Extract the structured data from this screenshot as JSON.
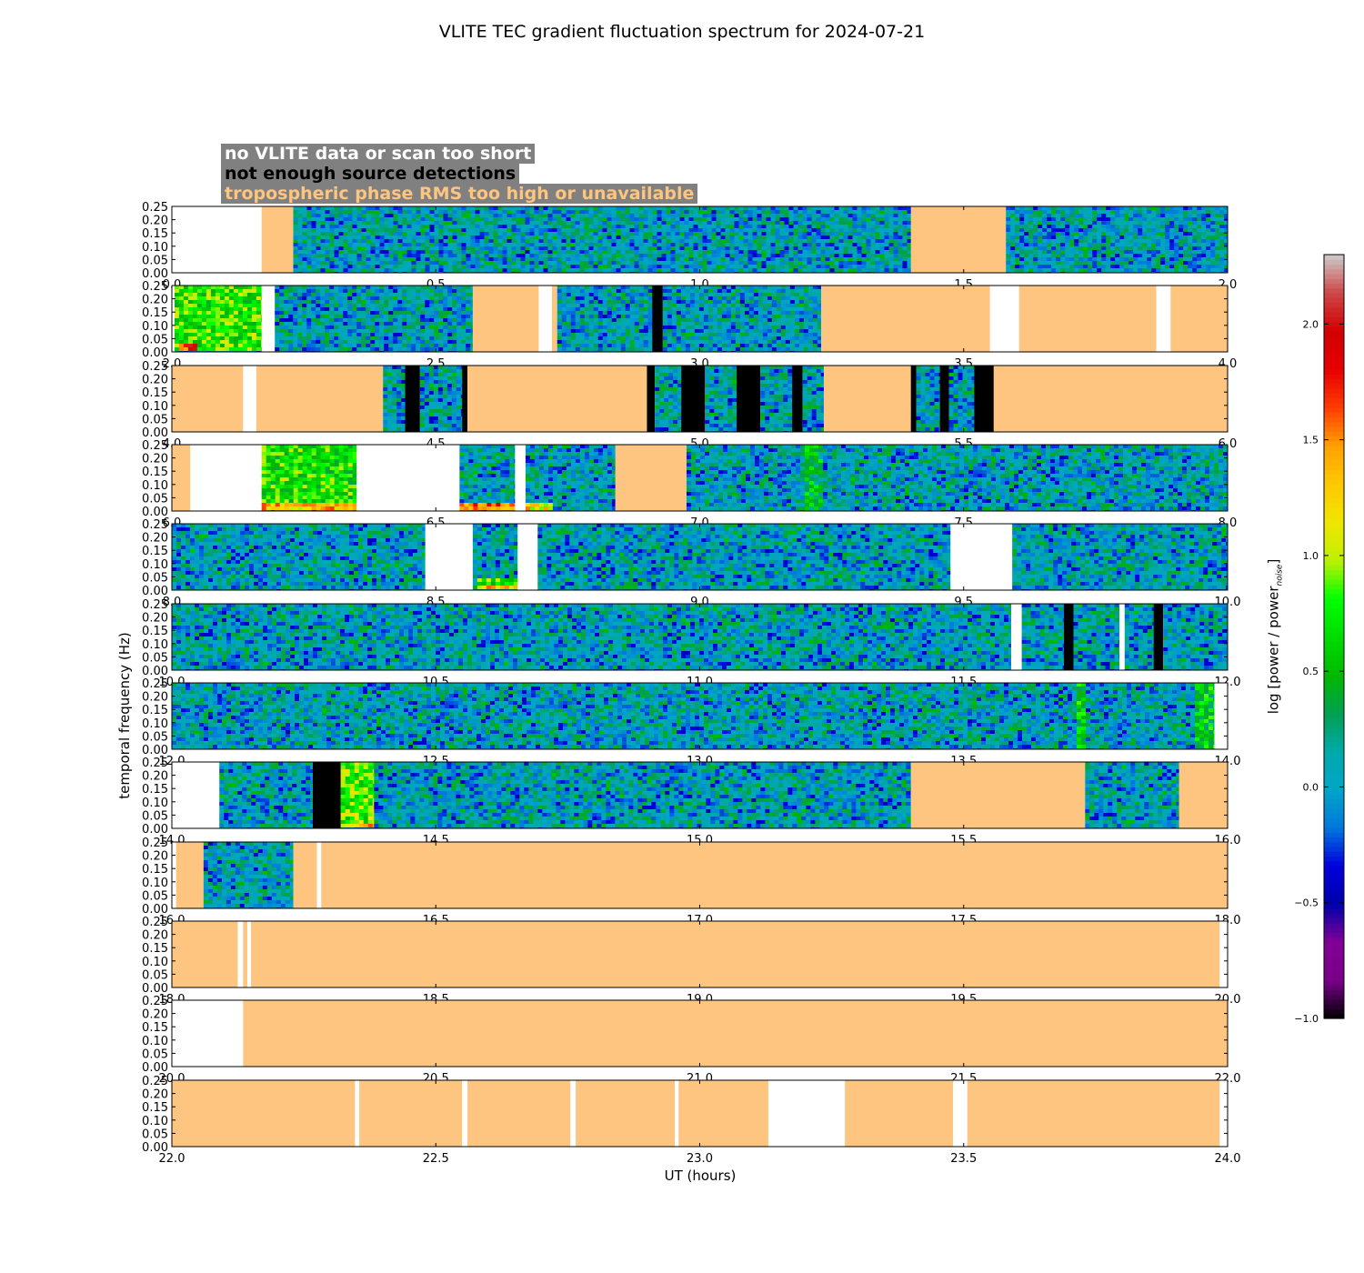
{
  "title": "VLITE TEC gradient fluctuation spectrum for 2024-07-21",
  "legend": [
    {
      "label": "no VLITE data or scan too short",
      "color": "#ffffff"
    },
    {
      "label": "not enough source detections",
      "color": "#000000"
    },
    {
      "label": "tropospheric phase RMS too high or unavailable",
      "color": "#fdc57f"
    }
  ],
  "colors": {
    "no_data": "#ffffff",
    "no_detections": "#000000",
    "tropo": "#fdc57f",
    "legend_bg": "#808080"
  },
  "chart_data": {
    "type": "heatmap",
    "title": "VLITE TEC gradient fluctuation spectrum for 2024-07-21",
    "xlabel": "UT (hours)",
    "ylabel": "temporal frequency (Hz)",
    "colorbar_label": "log [power / power_noise]",
    "colorbar_range": [
      -1.0,
      2.3
    ],
    "colorbar_ticks": [
      "-1.0",
      "-0.5",
      "0.0",
      "0.5",
      "1.0",
      "1.5",
      "2.0"
    ],
    "colormap": "nipy_spectral",
    "ylim": [
      0,
      0.25
    ],
    "y_ticks": [
      "0.00",
      "0.05",
      "0.10",
      "0.15",
      "0.20",
      "0.25"
    ],
    "panels": [
      {
        "xlim": [
          0,
          2
        ],
        "ticks": [
          "0.0",
          "0.5",
          "1.0",
          "1.5",
          "2.0"
        ],
        "segments": [
          [
            0,
            0.17,
            "none"
          ],
          [
            0.17,
            0.23,
            "tropo"
          ],
          [
            0.23,
            1.4,
            "data"
          ],
          [
            1.4,
            1.58,
            "tropo"
          ],
          [
            1.58,
            2.0,
            "data"
          ]
        ],
        "features": []
      },
      {
        "xlim": [
          2,
          4
        ],
        "ticks": [
          "2.0",
          "2.5",
          "3.0",
          "3.5",
          "4.0"
        ],
        "segments": [
          [
            2.0,
            2.005,
            "none"
          ],
          [
            2.005,
            2.17,
            "data"
          ],
          [
            2.17,
            2.195,
            "none"
          ],
          [
            2.195,
            2.57,
            "data"
          ],
          [
            2.57,
            2.695,
            "tropo"
          ],
          [
            2.695,
            2.72,
            "none"
          ],
          [
            2.72,
            2.73,
            "tropo"
          ],
          [
            2.73,
            2.91,
            "data"
          ],
          [
            2.91,
            2.93,
            "black"
          ],
          [
            2.93,
            3.23,
            "data"
          ],
          [
            3.23,
            3.55,
            "tropo"
          ],
          [
            3.55,
            3.605,
            "none"
          ],
          [
            3.605,
            3.865,
            "tropo"
          ],
          [
            3.865,
            3.892,
            "none"
          ],
          [
            3.892,
            4.0,
            "tropo"
          ]
        ],
        "features": [
          [
            2.005,
            2.17,
            0.0,
            0.25,
            0.75
          ],
          [
            2.01,
            2.05,
            0.0,
            0.03,
            1.7
          ]
        ]
      },
      {
        "xlim": [
          4,
          6
        ],
        "ticks": [
          "4.0",
          "4.5",
          "5.0",
          "5.5",
          "6.0"
        ],
        "segments": [
          [
            4.0,
            4.135,
            "tropo"
          ],
          [
            4.135,
            4.16,
            "none"
          ],
          [
            4.16,
            4.4,
            "tropo"
          ],
          [
            4.4,
            4.442,
            "data"
          ],
          [
            4.442,
            4.47,
            "black"
          ],
          [
            4.47,
            4.55,
            "data"
          ],
          [
            4.55,
            4.56,
            "black"
          ],
          [
            4.56,
            4.9,
            "tropo"
          ],
          [
            4.9,
            4.915,
            "black"
          ],
          [
            4.915,
            4.965,
            "data"
          ],
          [
            4.965,
            5.01,
            "black"
          ],
          [
            5.01,
            5.07,
            "data"
          ],
          [
            5.07,
            5.115,
            "black"
          ],
          [
            5.115,
            5.175,
            "data"
          ],
          [
            5.175,
            5.195,
            "black"
          ],
          [
            5.195,
            5.235,
            "data"
          ],
          [
            5.235,
            5.4,
            "tropo"
          ],
          [
            5.4,
            5.41,
            "black"
          ],
          [
            5.41,
            5.455,
            "data"
          ],
          [
            5.455,
            5.472,
            "black"
          ],
          [
            5.472,
            5.52,
            "data"
          ],
          [
            5.52,
            5.557,
            "black"
          ],
          [
            5.557,
            6.0,
            "tropo"
          ]
        ],
        "features": []
      },
      {
        "xlim": [
          6,
          8
        ],
        "ticks": [
          "6.0",
          "6.5",
          "7.0",
          "7.5",
          "8.0"
        ],
        "segments": [
          [
            6.0,
            6.035,
            "tropo"
          ],
          [
            6.035,
            6.17,
            "none"
          ],
          [
            6.17,
            6.35,
            "data"
          ],
          [
            6.35,
            6.545,
            "none"
          ],
          [
            6.545,
            6.65,
            "data"
          ],
          [
            6.65,
            6.67,
            "none"
          ],
          [
            6.67,
            6.84,
            "data"
          ],
          [
            6.84,
            6.975,
            "tropo"
          ],
          [
            6.975,
            8.0,
            "data"
          ]
        ],
        "features": [
          [
            6.17,
            6.35,
            0.0,
            0.25,
            0.7
          ],
          [
            6.17,
            6.35,
            0.0,
            0.03,
            1.3
          ],
          [
            6.545,
            6.65,
            0.0,
            0.03,
            1.6
          ],
          [
            6.67,
            6.72,
            0.0,
            0.03,
            1.2
          ],
          [
            7.2,
            7.23,
            0.0,
            0.25,
            0.45
          ]
        ]
      },
      {
        "xlim": [
          8,
          10
        ],
        "ticks": [
          "8.0",
          "8.5",
          "9.0",
          "9.5",
          "10.0"
        ],
        "segments": [
          [
            8.0,
            8.48,
            "data"
          ],
          [
            8.48,
            8.57,
            "none"
          ],
          [
            8.57,
            8.655,
            "data"
          ],
          [
            8.655,
            8.693,
            "none"
          ],
          [
            8.693,
            9.475,
            "data"
          ],
          [
            9.475,
            9.592,
            "none"
          ],
          [
            9.592,
            10.0,
            "data"
          ]
        ],
        "features": [
          [
            8.48,
            8.48,
            0,
            0,
            0
          ],
          [
            8.575,
            8.655,
            0.0,
            0.05,
            0.75
          ],
          [
            8.575,
            8.655,
            0.0,
            0.02,
            1.3
          ]
        ]
      },
      {
        "xlim": [
          10,
          12
        ],
        "ticks": [
          "10.0",
          "10.5",
          "11.0",
          "11.5",
          "12.0"
        ],
        "segments": [
          [
            10.0,
            11.59,
            "data"
          ],
          [
            11.59,
            11.61,
            "none"
          ],
          [
            11.61,
            11.69,
            "data"
          ],
          [
            11.69,
            11.708,
            "black"
          ],
          [
            11.708,
            11.795,
            "data"
          ],
          [
            11.795,
            11.805,
            "none"
          ],
          [
            11.805,
            11.86,
            "data"
          ],
          [
            11.86,
            11.878,
            "black"
          ],
          [
            11.878,
            12.0,
            "data"
          ]
        ],
        "features": []
      },
      {
        "xlim": [
          12,
          14
        ],
        "ticks": [
          "12.0",
          "12.5",
          "13.0",
          "13.5",
          "14.0"
        ],
        "segments": [
          [
            12.0,
            13.975,
            "data"
          ],
          [
            13.975,
            14.0,
            "none"
          ]
        ],
        "features": [
          [
            12.87,
            12.93,
            0.0,
            0.25,
            0.08
          ],
          [
            13.71,
            13.73,
            0.0,
            0.25,
            0.6
          ],
          [
            13.935,
            13.975,
            0.0,
            0.25,
            0.55
          ]
        ]
      },
      {
        "xlim": [
          14,
          16
        ],
        "ticks": [
          "14.0",
          "14.5",
          "15.0",
          "15.5",
          "16.0"
        ],
        "segments": [
          [
            14.0,
            14.09,
            "none"
          ],
          [
            14.09,
            14.267,
            "data"
          ],
          [
            14.267,
            14.32,
            "black"
          ],
          [
            14.32,
            14.383,
            "data"
          ],
          [
            14.383,
            15.4,
            "data"
          ],
          [
            15.4,
            15.73,
            "tropo"
          ],
          [
            15.73,
            15.908,
            "data"
          ],
          [
            15.908,
            16.0,
            "tropo"
          ]
        ],
        "features": [
          [
            14.32,
            14.383,
            0.0,
            0.25,
            0.85
          ],
          [
            14.32,
            14.383,
            0.0,
            0.02,
            1.3
          ]
        ]
      },
      {
        "xlim": [
          16,
          18
        ],
        "ticks": [
          "16.0",
          "16.5",
          "17.0",
          "17.5",
          "18.0"
        ],
        "segments": [
          [
            16.0,
            16.008,
            "none"
          ],
          [
            16.008,
            16.06,
            "tropo"
          ],
          [
            16.06,
            16.23,
            "data"
          ],
          [
            16.23,
            16.275,
            "tropo"
          ],
          [
            16.275,
            16.283,
            "none"
          ],
          [
            16.283,
            18.0,
            "tropo"
          ]
        ],
        "features": []
      },
      {
        "xlim": [
          18,
          20
        ],
        "ticks": [
          "18.0",
          "18.5",
          "19.0",
          "19.5",
          "20.0"
        ],
        "segments": [
          [
            18.0,
            18.125,
            "tropo"
          ],
          [
            18.125,
            18.135,
            "none"
          ],
          [
            18.135,
            18.143,
            "tropo"
          ],
          [
            18.143,
            18.15,
            "none"
          ],
          [
            18.15,
            19.985,
            "tropo"
          ],
          [
            19.985,
            20.0,
            "none"
          ]
        ],
        "features": []
      },
      {
        "xlim": [
          20,
          22
        ],
        "ticks": [
          "20.0",
          "20.5",
          "21.0",
          "21.5",
          "22.0"
        ],
        "segments": [
          [
            20.0,
            20.135,
            "none"
          ],
          [
            20.135,
            22.0,
            "tropo"
          ]
        ],
        "features": []
      },
      {
        "xlim": [
          22,
          24
        ],
        "ticks": [
          "22.0",
          "22.5",
          "23.0",
          "23.5",
          "24.0"
        ],
        "segments": [
          [
            22.0,
            22.347,
            "tropo"
          ],
          [
            22.347,
            22.355,
            "none"
          ],
          [
            22.355,
            22.55,
            "tropo"
          ],
          [
            22.55,
            22.56,
            "none"
          ],
          [
            22.56,
            22.755,
            "tropo"
          ],
          [
            22.755,
            22.765,
            "none"
          ],
          [
            22.765,
            22.953,
            "tropo"
          ],
          [
            22.953,
            22.96,
            "none"
          ],
          [
            22.96,
            23.13,
            "tropo"
          ],
          [
            23.13,
            23.275,
            "none"
          ],
          [
            23.275,
            23.48,
            "tropo"
          ],
          [
            23.48,
            23.507,
            "none"
          ],
          [
            23.507,
            23.985,
            "tropo"
          ],
          [
            23.985,
            24.0,
            "none"
          ]
        ],
        "features": []
      }
    ]
  }
}
